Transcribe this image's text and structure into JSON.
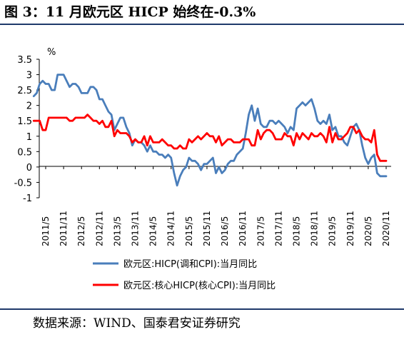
{
  "figure": {
    "title": "图 3：11 月欧元区 HICP 始终在-0.3%",
    "source": "数据来源：WIND、国泰君安证券研究"
  },
  "chart_data": {
    "type": "line",
    "unit_label": "%",
    "ylim": [
      -1,
      3.5
    ],
    "yticks": [
      "3.5",
      "3",
      "2.5",
      "2",
      "1.5",
      "1",
      "0.5",
      "0",
      "-0.5",
      "-1"
    ],
    "yticks_values": [
      3.5,
      3,
      2.5,
      2,
      1.5,
      1,
      0.5,
      0,
      -0.5,
      -1
    ],
    "xticks": [
      "2011/5",
      "2011/11",
      "2012/5",
      "2012/11",
      "2013/5",
      "2013/11",
      "2014/5",
      "2014/11",
      "2015/5",
      "2015/11",
      "2016/5",
      "2016/11",
      "2017/5",
      "2017/11",
      "2018/5",
      "2018/11",
      "2019/5",
      "2019/11",
      "2020/5",
      "2020/11"
    ],
    "x_start": "2011/1",
    "x_end": "2020/11",
    "grid": false,
    "legend_position": "bottom",
    "series": [
      {
        "name": "欧元区:HICP(调和CPI):当月同比",
        "color": "#4a7ebb",
        "values": [
          2.3,
          2.4,
          2.7,
          2.8,
          2.7,
          2.7,
          2.5,
          2.5,
          3.0,
          3.0,
          3.0,
          2.8,
          2.6,
          2.7,
          2.7,
          2.6,
          2.4,
          2.4,
          2.4,
          2.6,
          2.6,
          2.5,
          2.2,
          2.2,
          2.0,
          1.8,
          1.7,
          1.2,
          1.4,
          1.6,
          1.6,
          1.3,
          1.1,
          0.7,
          0.9,
          0.8,
          0.8,
          0.7,
          0.5,
          0.7,
          0.5,
          0.5,
          0.4,
          0.4,
          0.3,
          0.4,
          0.3,
          -0.2,
          -0.6,
          -0.3,
          -0.1,
          0.0,
          0.3,
          0.2,
          0.2,
          0.1,
          -0.1,
          0.1,
          0.1,
          0.2,
          0.3,
          -0.2,
          0.0,
          -0.2,
          -0.1,
          0.1,
          0.2,
          0.2,
          0.4,
          0.5,
          0.6,
          1.1,
          1.7,
          2.0,
          1.5,
          1.9,
          1.4,
          1.3,
          1.3,
          1.5,
          1.5,
          1.4,
          1.5,
          1.4,
          1.3,
          1.1,
          1.3,
          1.2,
          1.9,
          2.0,
          2.1,
          2.0,
          2.1,
          2.2,
          1.9,
          1.5,
          1.4,
          1.5,
          1.4,
          1.7,
          1.2,
          1.3,
          1.0,
          1.0,
          0.8,
          0.7,
          1.0,
          1.3,
          1.4,
          1.2,
          0.7,
          0.3,
          0.1,
          0.3,
          0.4,
          -0.2,
          -0.3,
          -0.3,
          -0.3
        ],
        "note_first_period": "2011/1"
      },
      {
        "name": "欧元区:核心HICP(核心CPI):当月同比",
        "color": "#ff0000",
        "values": [
          1.5,
          1.5,
          1.5,
          1.2,
          1.2,
          1.6,
          1.6,
          1.6,
          1.6,
          1.6,
          1.6,
          1.6,
          1.5,
          1.5,
          1.6,
          1.6,
          1.6,
          1.6,
          1.7,
          1.6,
          1.5,
          1.5,
          1.4,
          1.5,
          1.3,
          1.3,
          1.5,
          1.0,
          1.2,
          1.1,
          1.1,
          1.1,
          1.0,
          0.8,
          0.9,
          0.8,
          0.8,
          1.0,
          0.7,
          1.0,
          0.8,
          0.8,
          0.8,
          0.9,
          0.8,
          0.7,
          0.7,
          0.6,
          0.6,
          0.7,
          0.6,
          0.6,
          0.9,
          0.8,
          0.9,
          1.0,
          0.9,
          1.0,
          1.1,
          1.0,
          1.0,
          0.8,
          1.0,
          0.7,
          0.8,
          0.9,
          0.9,
          0.8,
          0.8,
          0.8,
          0.9,
          0.9,
          0.9,
          0.7,
          0.7,
          1.2,
          0.9,
          1.1,
          1.2,
          1.2,
          1.1,
          0.9,
          0.9,
          0.9,
          1.1,
          1.0,
          1.0,
          0.7,
          1.1,
          0.9,
          1.1,
          1.0,
          0.9,
          1.1,
          1.0,
          1.0,
          1.1,
          1.0,
          0.8,
          1.3,
          0.8,
          1.1,
          0.9,
          0.9,
          1.0,
          1.1,
          1.3,
          1.3,
          1.1,
          1.2,
          1.0,
          0.9,
          0.9,
          0.8,
          1.2,
          0.4,
          0.2,
          0.2,
          0.2
        ],
        "note_first_period": "2011/1"
      }
    ]
  }
}
